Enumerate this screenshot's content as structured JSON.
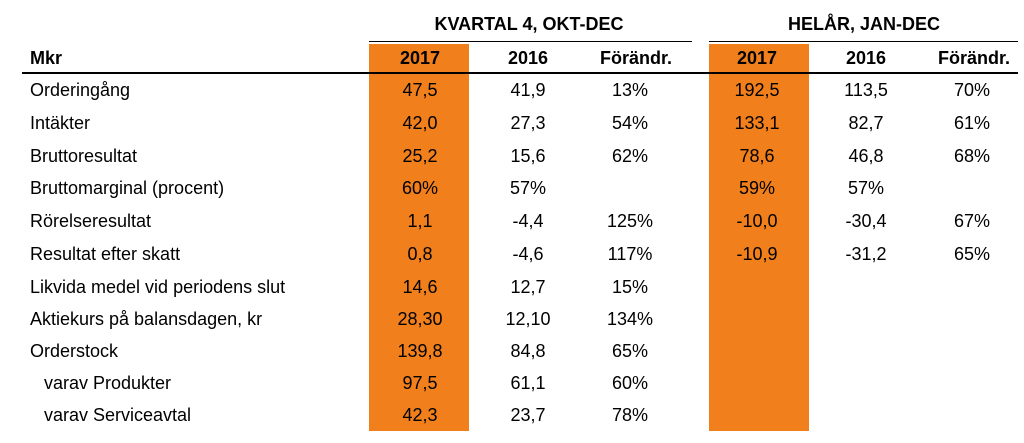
{
  "table": {
    "unit_label": "Mkr",
    "groups": [
      {
        "title": "KVARTAL 4,  OKT-DEC",
        "headers": [
          "2017",
          "2016",
          "Förändr."
        ]
      },
      {
        "title": "HELÅR, JAN-DEC",
        "headers": [
          "2017",
          "2016",
          "Förändr."
        ]
      }
    ],
    "rows": [
      {
        "label": "Orderingång",
        "q4": [
          "47,5",
          "41,9",
          "13%"
        ],
        "fy": [
          "192,5",
          "113,5",
          "70%"
        ]
      },
      {
        "label": "Intäkter",
        "q4": [
          "42,0",
          "27,3",
          "54%"
        ],
        "fy": [
          "133,1",
          "82,7",
          "61%"
        ]
      },
      {
        "label": "Bruttoresultat",
        "q4": [
          "25,2",
          "15,6",
          "62%"
        ],
        "fy": [
          "78,6",
          "46,8",
          "68%"
        ]
      },
      {
        "label": "Bruttomarginal (procent)",
        "q4": [
          "60%",
          "57%",
          ""
        ],
        "fy": [
          "59%",
          "57%",
          ""
        ]
      },
      {
        "label": "Rörelseresultat",
        "q4": [
          "1,1",
          "-4,4",
          "125%"
        ],
        "fy": [
          "-10,0",
          "-30,4",
          "67%"
        ]
      },
      {
        "label": "Resultat efter skatt",
        "q4": [
          "0,8",
          "-4,6",
          "117%"
        ],
        "fy": [
          "-10,9",
          "-31,2",
          "65%"
        ]
      },
      {
        "label": "Likvida medel vid periodens slut",
        "q4": [
          "14,6",
          "12,7",
          "15%"
        ],
        "fy": [
          "",
          "",
          ""
        ]
      },
      {
        "label": "Aktiekurs på balansdagen, kr",
        "q4": [
          "28,30",
          "12,10",
          "134%"
        ],
        "fy": [
          "",
          "",
          ""
        ]
      },
      {
        "label": "Orderstock",
        "q4": [
          "139,8",
          "84,8",
          "65%"
        ],
        "fy": [
          "",
          "",
          ""
        ]
      },
      {
        "label": "varav Produkter",
        "q4": [
          "97,5",
          "61,1",
          "60%"
        ],
        "fy": [
          "",
          "",
          ""
        ]
      },
      {
        "label": "varav Serviceavtal",
        "q4": [
          "42,3",
          "23,7",
          "78%"
        ],
        "fy": [
          "",
          "",
          ""
        ]
      }
    ]
  },
  "colors": {
    "highlight": "#f07f1c"
  }
}
